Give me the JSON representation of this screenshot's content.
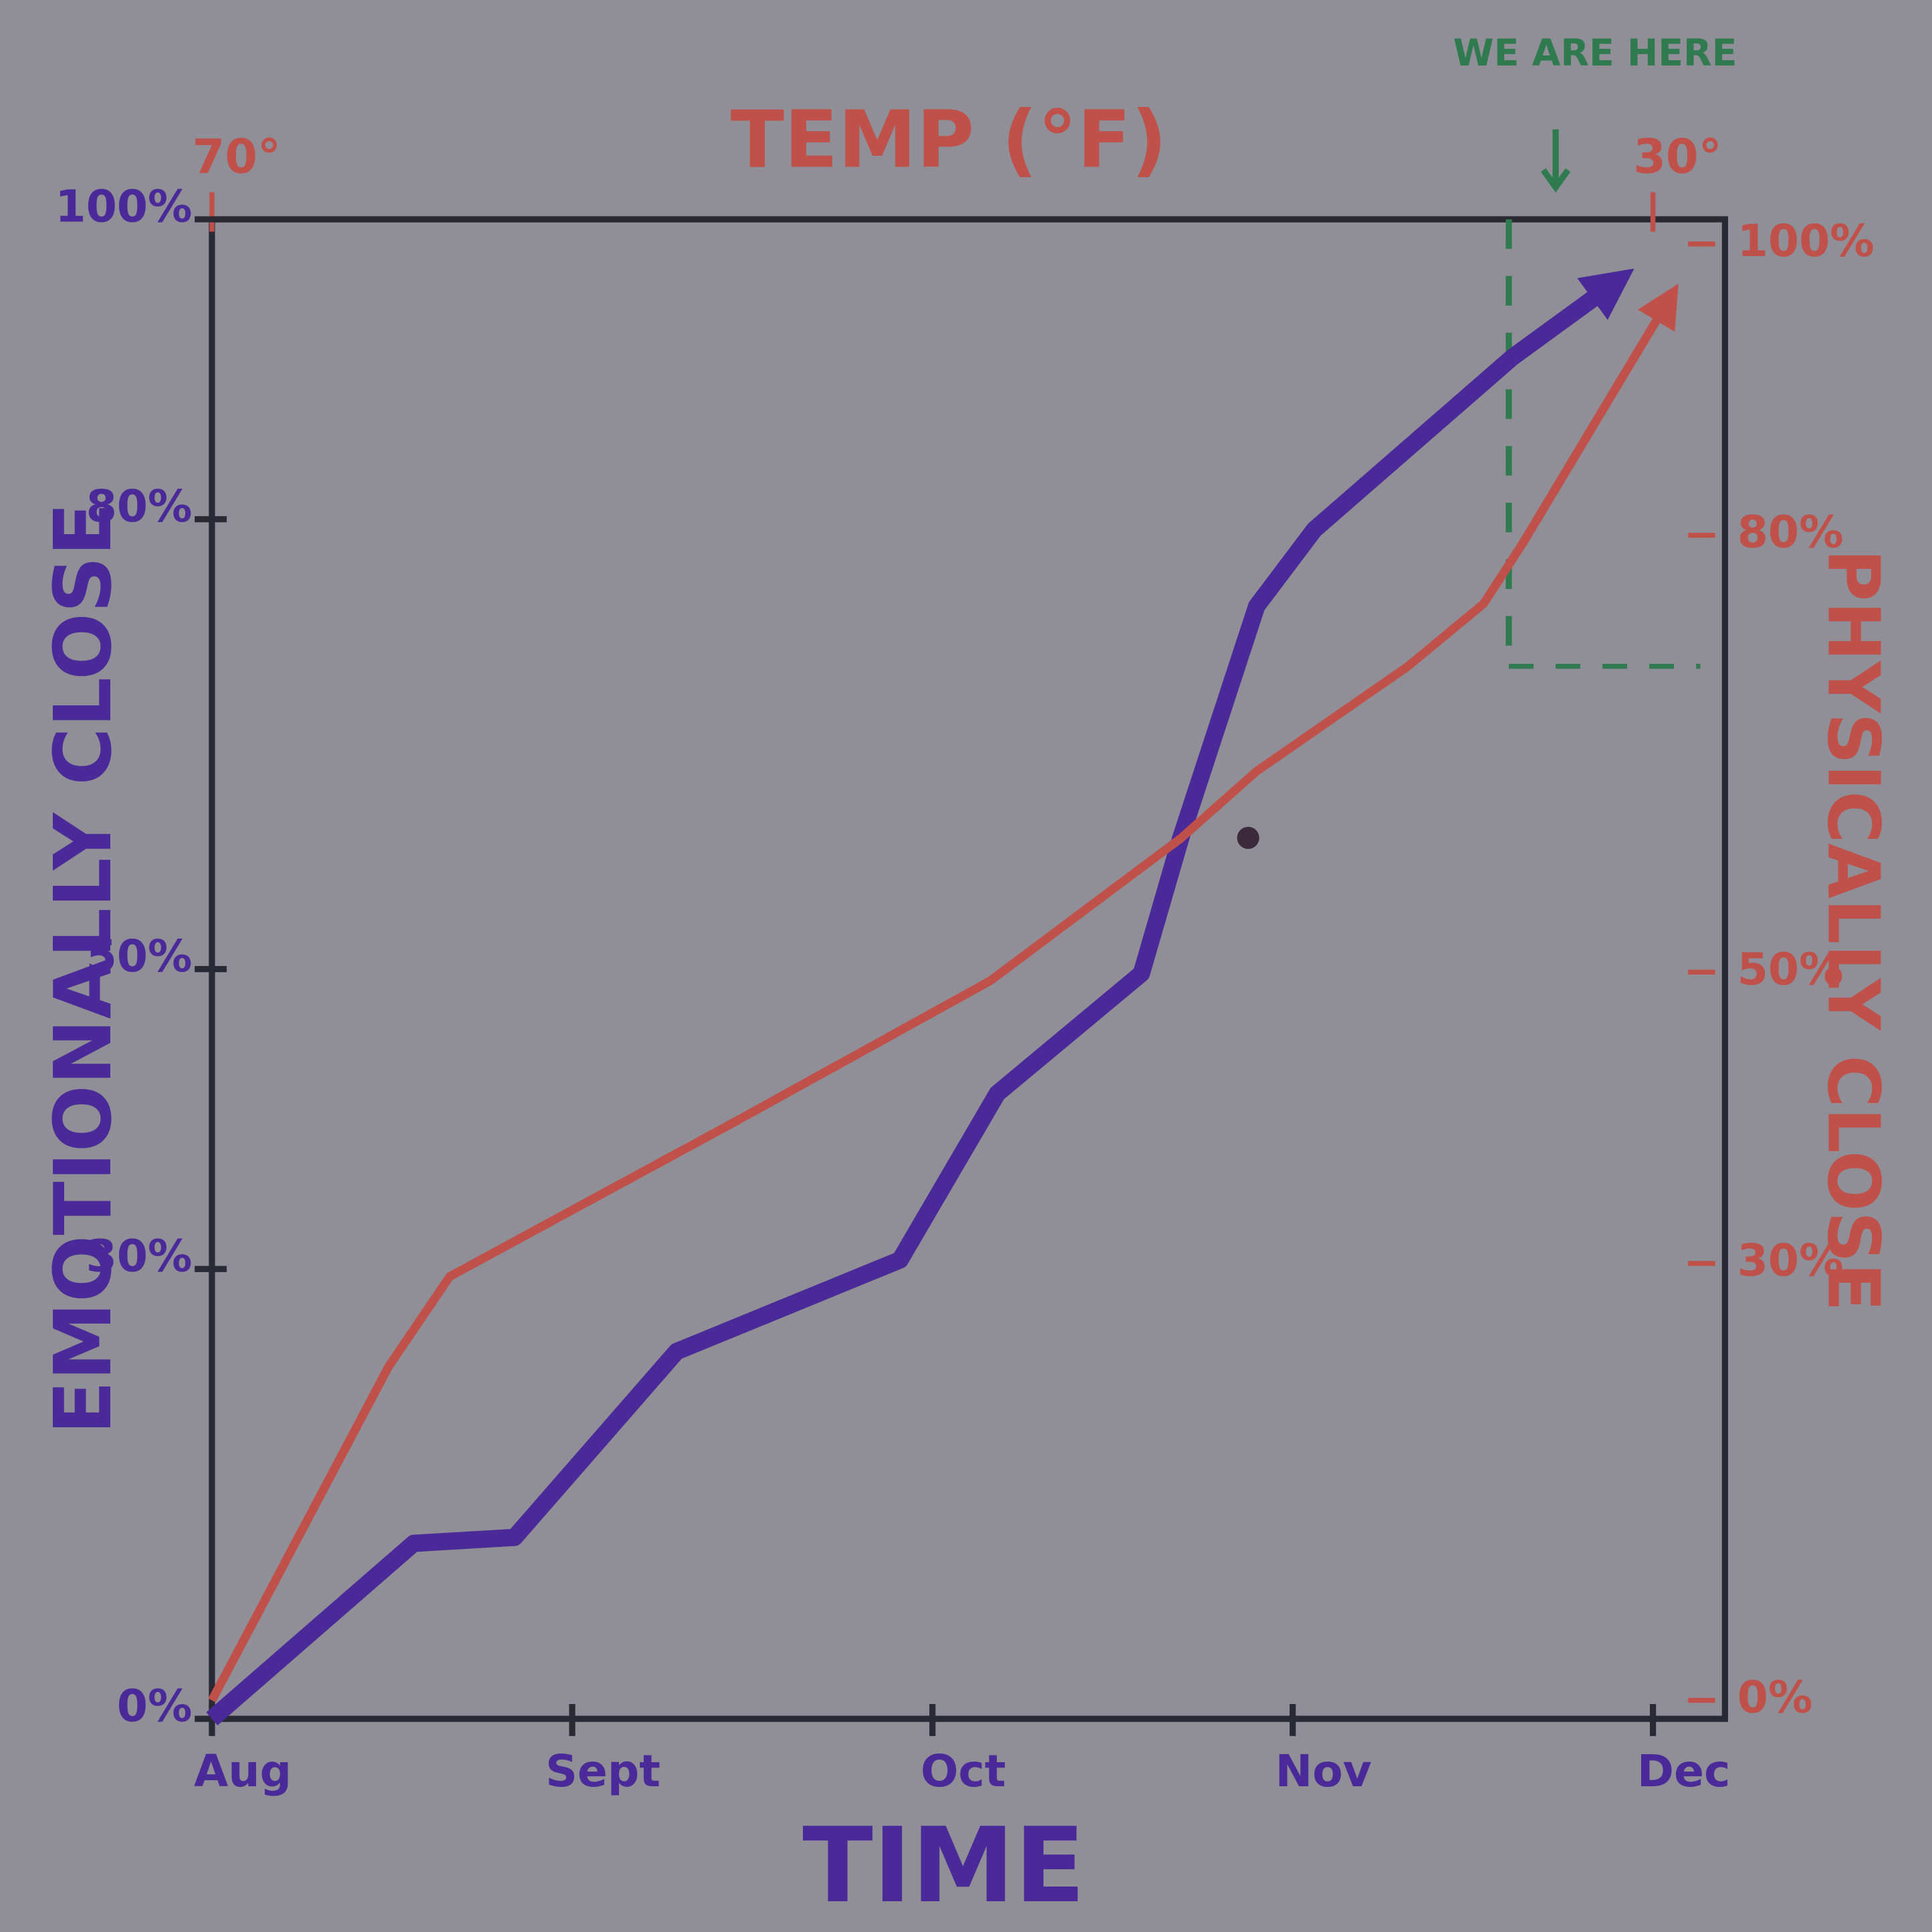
{
  "chart_data": {
    "type": "line",
    "title": "TEMP (°F)",
    "xlabel": "TIME",
    "ylabel": "EMOTIONALLY CLOSE",
    "y2label": "PHYSICALLY CLOSE",
    "xlim": [
      0,
      4.2
    ],
    "xticks": [
      {
        "value": 0,
        "label": "Aug"
      },
      {
        "value": 1,
        "label": "Sept"
      },
      {
        "value": 2,
        "label": "Oct"
      },
      {
        "value": 3,
        "label": "Nov"
      },
      {
        "value": 4,
        "label": "Dec"
      }
    ],
    "x2lim": [
      70,
      28
    ],
    "x2ticks": [
      {
        "value": 70,
        "label": "70°"
      },
      {
        "value": 30,
        "label": "30°"
      }
    ],
    "ylim": [
      0,
      100
    ],
    "yticks": [
      {
        "value": 0,
        "label": "0%"
      },
      {
        "value": 30,
        "label": "30%"
      },
      {
        "value": 50,
        "label": "50%"
      },
      {
        "value": 80,
        "label": "80%"
      },
      {
        "value": 100,
        "label": "100%"
      }
    ],
    "y2lim": [
      0,
      100
    ],
    "y2ticks": [
      {
        "value": 0,
        "label": "0%"
      },
      {
        "value": 30,
        "label": "30%"
      },
      {
        "value": 50,
        "label": "50%"
      },
      {
        "value": 80,
        "label": "80%"
      },
      {
        "value": 100,
        "label": "100%"
      }
    ],
    "series": [
      {
        "color": "#4a2a98",
        "x": [
          0,
          0.56,
          0.84,
          1.29,
          1.91,
          2.18,
          2.58,
          2.69,
          2.9,
          3.06,
          3.61,
          3.89
        ],
        "values": [
          0,
          11.7,
          12.1,
          24.5,
          30.6,
          41.7,
          49.7,
          58.8,
          74.2,
          79.3,
          90.8,
          95.7
        ]
      },
      {
        "color": "#c0504a",
        "axis": "y2",
        "x": [
          0,
          0.49,
          0.66,
          1.45,
          2.16,
          2.69,
          2.9,
          3.32,
          3.53,
          3.64,
          4.04
        ],
        "values": [
          0,
          22.9,
          29.1,
          39.7,
          49.4,
          59.2,
          63.8,
          71,
          75.3,
          79.5,
          96
        ]
      }
    ],
    "annotation": {
      "text": "WE ARE HERE",
      "x": 3.6,
      "y2": 71,
      "color": "#2f7a4f"
    }
  }
}
